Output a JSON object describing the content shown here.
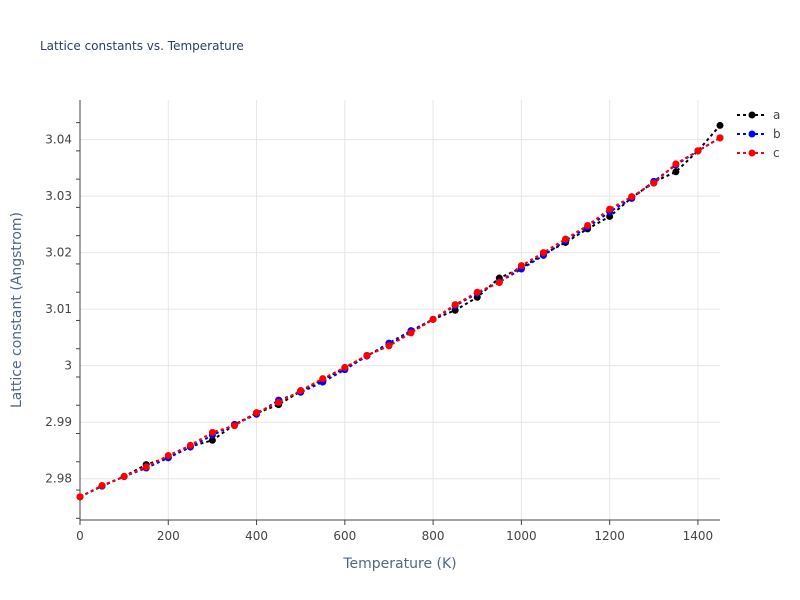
{
  "chart_data": {
    "type": "line",
    "title": "Lattice constants vs. Temperature",
    "xlabel": "Temperature (K)",
    "ylabel": "Lattice constant (Angstrom)",
    "xlim": [
      0,
      1450
    ],
    "ylim": [
      2.9727,
      3.047
    ],
    "x_ticks": [
      0,
      200,
      400,
      600,
      800,
      1000,
      1200,
      1400
    ],
    "y_ticks": [
      2.98,
      2.99,
      3.0,
      3.01,
      3.02,
      3.03,
      3.04
    ],
    "x_tick_labels": [
      "0",
      "200",
      "400",
      "600",
      "800",
      "1000",
      "1200",
      "1400"
    ],
    "y_tick_labels": [
      "2.98",
      "2.99",
      "3",
      "3.01",
      "3.02",
      "3.03",
      "3.04"
    ],
    "grid": true,
    "legend_position": "top-right",
    "x": [
      0,
      50,
      100,
      150,
      200,
      250,
      300,
      350,
      400,
      450,
      500,
      550,
      600,
      650,
      700,
      750,
      800,
      850,
      900,
      950,
      1000,
      1050,
      1100,
      1150,
      1200,
      1250,
      1300,
      1350,
      1400,
      1450
    ],
    "series": [
      {
        "name": "a",
        "color": "#000000",
        "values": [
          2.9768,
          2.9787,
          2.9804,
          2.9825,
          2.9838,
          2.9857,
          2.9868,
          2.9896,
          2.9916,
          2.9931,
          2.9955,
          2.9975,
          2.9996,
          3.0018,
          3.0036,
          3.006,
          3.0082,
          3.0098,
          3.0121,
          3.0155,
          3.0173,
          3.0197,
          3.0218,
          3.0242,
          3.0264,
          3.0297,
          3.0325,
          3.0343,
          3.038,
          3.0425
        ]
      },
      {
        "name": "b",
        "color": "#0000ff",
        "values": [
          2.9768,
          2.9787,
          2.9804,
          2.9819,
          2.9837,
          2.9856,
          2.9877,
          2.9896,
          2.9914,
          2.9939,
          2.9953,
          2.9971,
          2.9993,
          3.0017,
          3.004,
          3.0062,
          3.0082,
          3.0106,
          3.0128,
          3.0148,
          3.0171,
          3.0195,
          3.0221,
          3.0245,
          3.0272,
          3.0296,
          3.0326,
          3.0355,
          3.038,
          3.0403
        ]
      },
      {
        "name": "c",
        "color": "#ff0000",
        "values": [
          2.9768,
          2.9788,
          2.9804,
          2.9821,
          2.9841,
          2.9859,
          2.9882,
          2.9894,
          2.9917,
          2.9935,
          2.9956,
          2.9977,
          2.9997,
          3.0018,
          3.0035,
          3.0058,
          3.0082,
          3.0108,
          3.013,
          3.0147,
          3.0177,
          3.02,
          3.0224,
          3.0248,
          3.0277,
          3.0299,
          3.0323,
          3.0357,
          3.038,
          3.0403
        ]
      }
    ]
  }
}
